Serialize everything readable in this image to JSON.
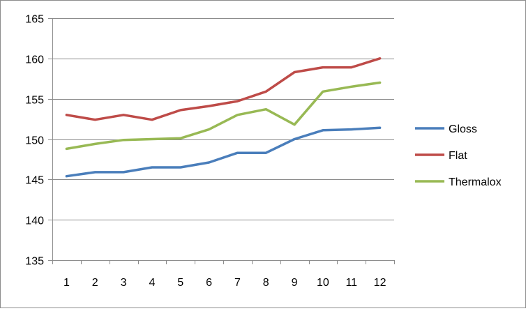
{
  "chart_data": {
    "type": "line",
    "title": "",
    "xlabel": "",
    "ylabel": "",
    "x": [
      1,
      2,
      3,
      4,
      5,
      6,
      7,
      8,
      9,
      10,
      11,
      12
    ],
    "x_tick_labels": [
      "1",
      "2",
      "3",
      "4",
      "5",
      "6",
      "7",
      "8",
      "9",
      "10",
      "11",
      "12"
    ],
    "ylim": [
      135,
      165
    ],
    "y_ticks": [
      135,
      140,
      145,
      150,
      155,
      160,
      165
    ],
    "y_tick_labels": [
      "135",
      "140",
      "145",
      "150",
      "155",
      "160",
      "165"
    ],
    "grid": "horizontal",
    "legend_position": "right",
    "series": [
      {
        "name": "Gloss",
        "color": "#4a7ebb",
        "values": [
          145.4,
          145.9,
          145.9,
          146.5,
          146.5,
          147.1,
          148.3,
          148.3,
          150.0,
          151.1,
          151.2,
          151.4
        ]
      },
      {
        "name": "Flat",
        "color": "#be4b48",
        "values": [
          153.0,
          152.4,
          153.0,
          152.4,
          153.6,
          154.1,
          154.7,
          155.9,
          158.3,
          158.9,
          158.9,
          160.0
        ]
      },
      {
        "name": "Thermalox",
        "color": "#98b954",
        "values": [
          148.8,
          149.4,
          149.9,
          150.0,
          150.1,
          151.2,
          153.0,
          153.7,
          151.8,
          155.9,
          156.5,
          157.0
        ]
      }
    ]
  }
}
